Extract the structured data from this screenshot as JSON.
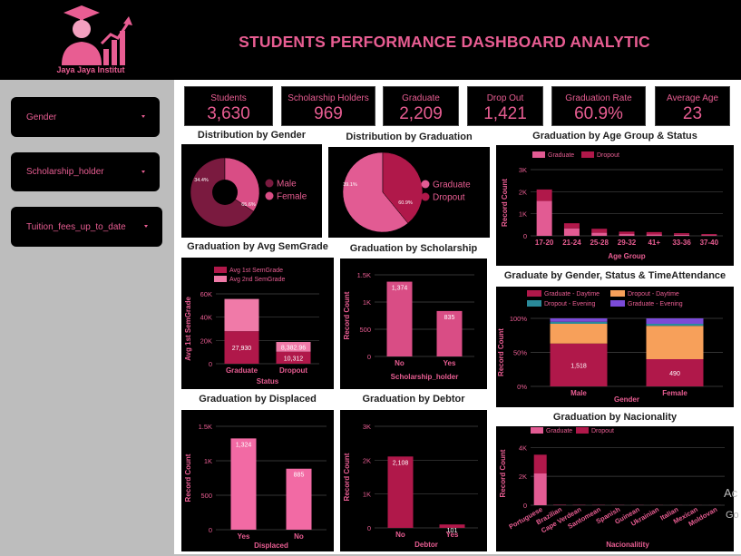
{
  "header": {
    "title": "STUDENTS PERFORMANCE DASHBOARD ANALYTIC",
    "logo_text": "Jaya Jaya Institut",
    "colors": {
      "accent": "#e85d92",
      "dark": "#9e1b4f",
      "bg": "#000000"
    }
  },
  "filters": [
    {
      "label": "Gender"
    },
    {
      "label": "Scholarship_holder"
    },
    {
      "label": "Tuition_fees_up_to_date"
    }
  ],
  "kpis": [
    {
      "label": "Students",
      "value": "3,630"
    },
    {
      "label": "Scholarship Holders",
      "value": "969"
    },
    {
      "label": "Graduate",
      "value": "2,209"
    },
    {
      "label": "Drop Out",
      "value": "1,421"
    },
    {
      "label": "Graduation Rate",
      "value": "60.9%"
    },
    {
      "label": "Average Age",
      "value": "23"
    }
  ],
  "watermark": {
    "line1": "Ac",
    "line2": "Go"
  },
  "chart_data": [
    {
      "id": "gender",
      "type": "pie",
      "donut": true,
      "title": "Distribution by Gender",
      "labels": [
        "Male",
        "Female"
      ],
      "values": [
        65.6,
        34.4
      ],
      "value_labels": [
        "65.6%",
        "34.4%"
      ],
      "colors": [
        "#7a1a3f",
        "#d94d85"
      ],
      "legend": "right"
    },
    {
      "id": "graduation",
      "type": "pie",
      "title": "Distribution by Graduation",
      "labels": [
        "Graduate",
        "Dropout"
      ],
      "values": [
        60.9,
        39.1
      ],
      "value_labels": [
        "60.9%",
        "39.1%"
      ],
      "colors": [
        "#e25b93",
        "#b0184a"
      ],
      "legend": "right"
    },
    {
      "id": "age",
      "type": "bar",
      "stacked": true,
      "title": "Graduation by Age Group & Status",
      "categories": [
        "17-20",
        "21-24",
        "25-28",
        "29-32",
        "41+",
        "33-36",
        "37-40"
      ],
      "series": [
        {
          "name": "Graduate",
          "values": [
            1580,
            340,
            140,
            80,
            60,
            50,
            30
          ],
          "color": "#e25b93"
        },
        {
          "name": "Dropout",
          "values": [
            520,
            230,
            180,
            110,
            110,
            70,
            50
          ],
          "color": "#b0184a"
        }
      ],
      "xlabel": "Age Group",
      "ylabel": "Record Count",
      "yticks": [
        "0",
        "1K",
        "2K",
        "3K"
      ],
      "ylim": [
        0,
        3000
      ],
      "legend": "top-left"
    },
    {
      "id": "semgrade",
      "type": "bar",
      "stacked": true,
      "title": "Graduation by Avg SemGrade",
      "categories": [
        "Graduate",
        "Dropout"
      ],
      "series": [
        {
          "name": "Avg 1st SemGrade",
          "values": [
            27930,
            10312
          ],
          "labels": [
            "27,930",
            "10,312"
          ],
          "color": "#b0184a"
        },
        {
          "name": "Avg 2nd SemGrade",
          "values": [
            27700,
            8382.96
          ],
          "labels": [
            "",
            "8,382.96"
          ],
          "color": "#f07aa8"
        }
      ],
      "xlabel": "Status",
      "ylabel": "Avg 1st SemGrade",
      "yticks": [
        "0",
        "20K",
        "40K",
        "60K"
      ],
      "ylim": [
        0,
        60000
      ],
      "legend": "top-left"
    },
    {
      "id": "scholarship",
      "type": "bar",
      "title": "Graduation by Scholarship",
      "categories": [
        "No",
        "Yes"
      ],
      "values": [
        1374,
        835
      ],
      "value_labels": [
        "1,374",
        "835"
      ],
      "color": "#d94d85",
      "xlabel": "Scholarship_holder",
      "ylabel": "Record Count",
      "yticks": [
        "0",
        "500",
        "1K",
        "1.5K"
      ],
      "ylim": [
        0,
        1500
      ]
    },
    {
      "id": "gender_time",
      "type": "bar",
      "stacked": true,
      "title": "Graduate by Gender, Status & TimeAttendance",
      "categories": [
        "Male",
        "Female"
      ],
      "series": [
        {
          "name": "Graduate - Daytime",
          "values": [
            63,
            40
          ],
          "labels": [
            "1,518",
            "490"
          ],
          "color": "#b0184a"
        },
        {
          "name": "Dropout - Daytime",
          "values": [
            29,
            49
          ],
          "labels": [
            "",
            ""
          ],
          "color": "#f7a05a"
        },
        {
          "name": "Dropout - Evening",
          "values": [
            3,
            3
          ],
          "labels": [
            "",
            ""
          ],
          "color": "#2a8a9a"
        },
        {
          "name": "Graduate - Evening",
          "values": [
            5,
            8
          ],
          "labels": [
            "",
            ""
          ],
          "color": "#7b4bd8"
        }
      ],
      "xlabel": "Gender",
      "ylabel": "Record Count",
      "yticks": [
        "0%",
        "50%",
        "100%"
      ],
      "ylim": [
        0,
        100
      ],
      "legend": "top"
    },
    {
      "id": "displaced",
      "type": "bar",
      "title": "Graduation by Displaced",
      "categories": [
        "Yes",
        "No"
      ],
      "values": [
        1324,
        885
      ],
      "value_labels": [
        "1,324",
        "885"
      ],
      "color": "#f26aa4",
      "xlabel": "Displaced",
      "ylabel": "Record Count",
      "yticks": [
        "0",
        "500",
        "1K",
        "1.5K"
      ],
      "ylim": [
        0,
        1500
      ]
    },
    {
      "id": "debtor",
      "type": "bar",
      "title": "Graduation by Debtor",
      "categories": [
        "No",
        "Yes"
      ],
      "values": [
        2108,
        101
      ],
      "value_labels": [
        "2,108",
        "101"
      ],
      "color": "#b0184a",
      "xlabel": "Debtor",
      "ylabel": "Record Count",
      "yticks": [
        "0",
        "1K",
        "2K",
        "3K"
      ],
      "ylim": [
        0,
        3000
      ]
    },
    {
      "id": "nationality",
      "type": "bar",
      "stacked": true,
      "title": "Graduation by Nacionality",
      "categories": [
        "Portuguese",
        "Brazilian",
        "Cape Verdean",
        "Santomean",
        "Spanish",
        "Guinean",
        "Ukrainian",
        "Italian",
        "Mexican",
        "Moldovan"
      ],
      "series": [
        {
          "name": "Graduate",
          "values": [
            2200,
            20,
            15,
            12,
            10,
            8,
            6,
            5,
            4,
            3
          ],
          "color": "#e25b93"
        },
        {
          "name": "Dropout",
          "values": [
            1300,
            15,
            12,
            10,
            6,
            5,
            4,
            3,
            3,
            2
          ],
          "color": "#b0184a"
        }
      ],
      "xlabel": "Nacionalitity",
      "ylabel": "Record Count",
      "yticks": [
        "0",
        "2K",
        "4K"
      ],
      "ylim": [
        0,
        4400
      ],
      "legend": "top-left"
    }
  ]
}
